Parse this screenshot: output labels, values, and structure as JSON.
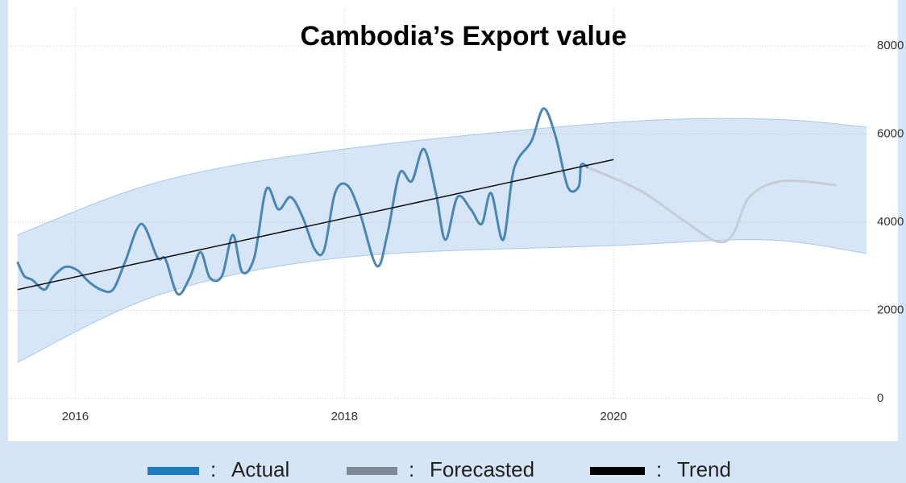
{
  "chart_data": {
    "type": "line",
    "title": "Cambodia’s Export value",
    "xlim": [
      2015.56,
      2021.88
    ],
    "xticks": [
      2016,
      2018,
      2020
    ],
    "ylim": [
      0,
      8000
    ],
    "yticks": [
      0,
      2000,
      4000,
      6000,
      8000
    ],
    "grid": true,
    "legend_separator": ":",
    "band": {
      "color": "#d6e6f7",
      "x": [
        2015.57,
        2016.64,
        2018.0,
        2020.0,
        2021.13,
        2021.88
      ],
      "upper": [
        3710,
        4930,
        5660,
        6260,
        6340,
        6160
      ],
      "lower": [
        820,
        2370,
        3200,
        3470,
        3600,
        3290
      ]
    },
    "series": [
      {
        "name": "Actual",
        "color": "#4a86b4",
        "legend_color": "#1f7bbf",
        "x": [
          2015.57,
          2015.62,
          2015.68,
          2015.77,
          2015.83,
          2015.92,
          2016.01,
          2016.1,
          2016.19,
          2016.28,
          2016.37,
          2016.49,
          2016.61,
          2016.67,
          2016.76,
          2016.85,
          2016.93,
          2017.0,
          2017.09,
          2017.17,
          2017.24,
          2017.33,
          2017.42,
          2017.51,
          2017.6,
          2017.69,
          2017.78,
          2017.85,
          2017.93,
          2018.02,
          2018.11,
          2018.24,
          2018.32,
          2018.41,
          2018.5,
          2018.59,
          2018.68,
          2018.75,
          2018.84,
          2018.94,
          2019.02,
          2019.09,
          2019.18,
          2019.26,
          2019.39,
          2019.48,
          2019.57,
          2019.66,
          2019.74,
          2019.76,
          2019.81
        ],
        "values": [
          3100,
          2780,
          2690,
          2470,
          2740,
          2980,
          2920,
          2650,
          2470,
          2470,
          3100,
          3960,
          3200,
          3160,
          2370,
          2740,
          3320,
          2740,
          2780,
          3710,
          2870,
          3200,
          4750,
          4290,
          4570,
          4110,
          3380,
          3380,
          4660,
          4840,
          4260,
          3010,
          3740,
          5110,
          4930,
          5660,
          4660,
          3600,
          4570,
          4290,
          3960,
          4660,
          3600,
          5210,
          5840,
          6580,
          5940,
          4800,
          4800,
          5300,
          5240
        ]
      },
      {
        "name": "Forecasted",
        "color": "#c5ced8",
        "legend_color": "#7f8a99",
        "x": [
          2019.81,
          2020.0,
          2020.23,
          2020.53,
          2020.77,
          2020.89,
          2021.01,
          2021.25,
          2021.66
        ],
        "values": [
          5240,
          5000,
          4660,
          4020,
          3560,
          3740,
          4570,
          4930,
          4840
        ]
      },
      {
        "name": "Trend",
        "color": "#111111",
        "legend_color": "#000000",
        "x": [
          2015.57,
          2020.0
        ],
        "values": [
          2470,
          5420
        ]
      }
    ]
  }
}
